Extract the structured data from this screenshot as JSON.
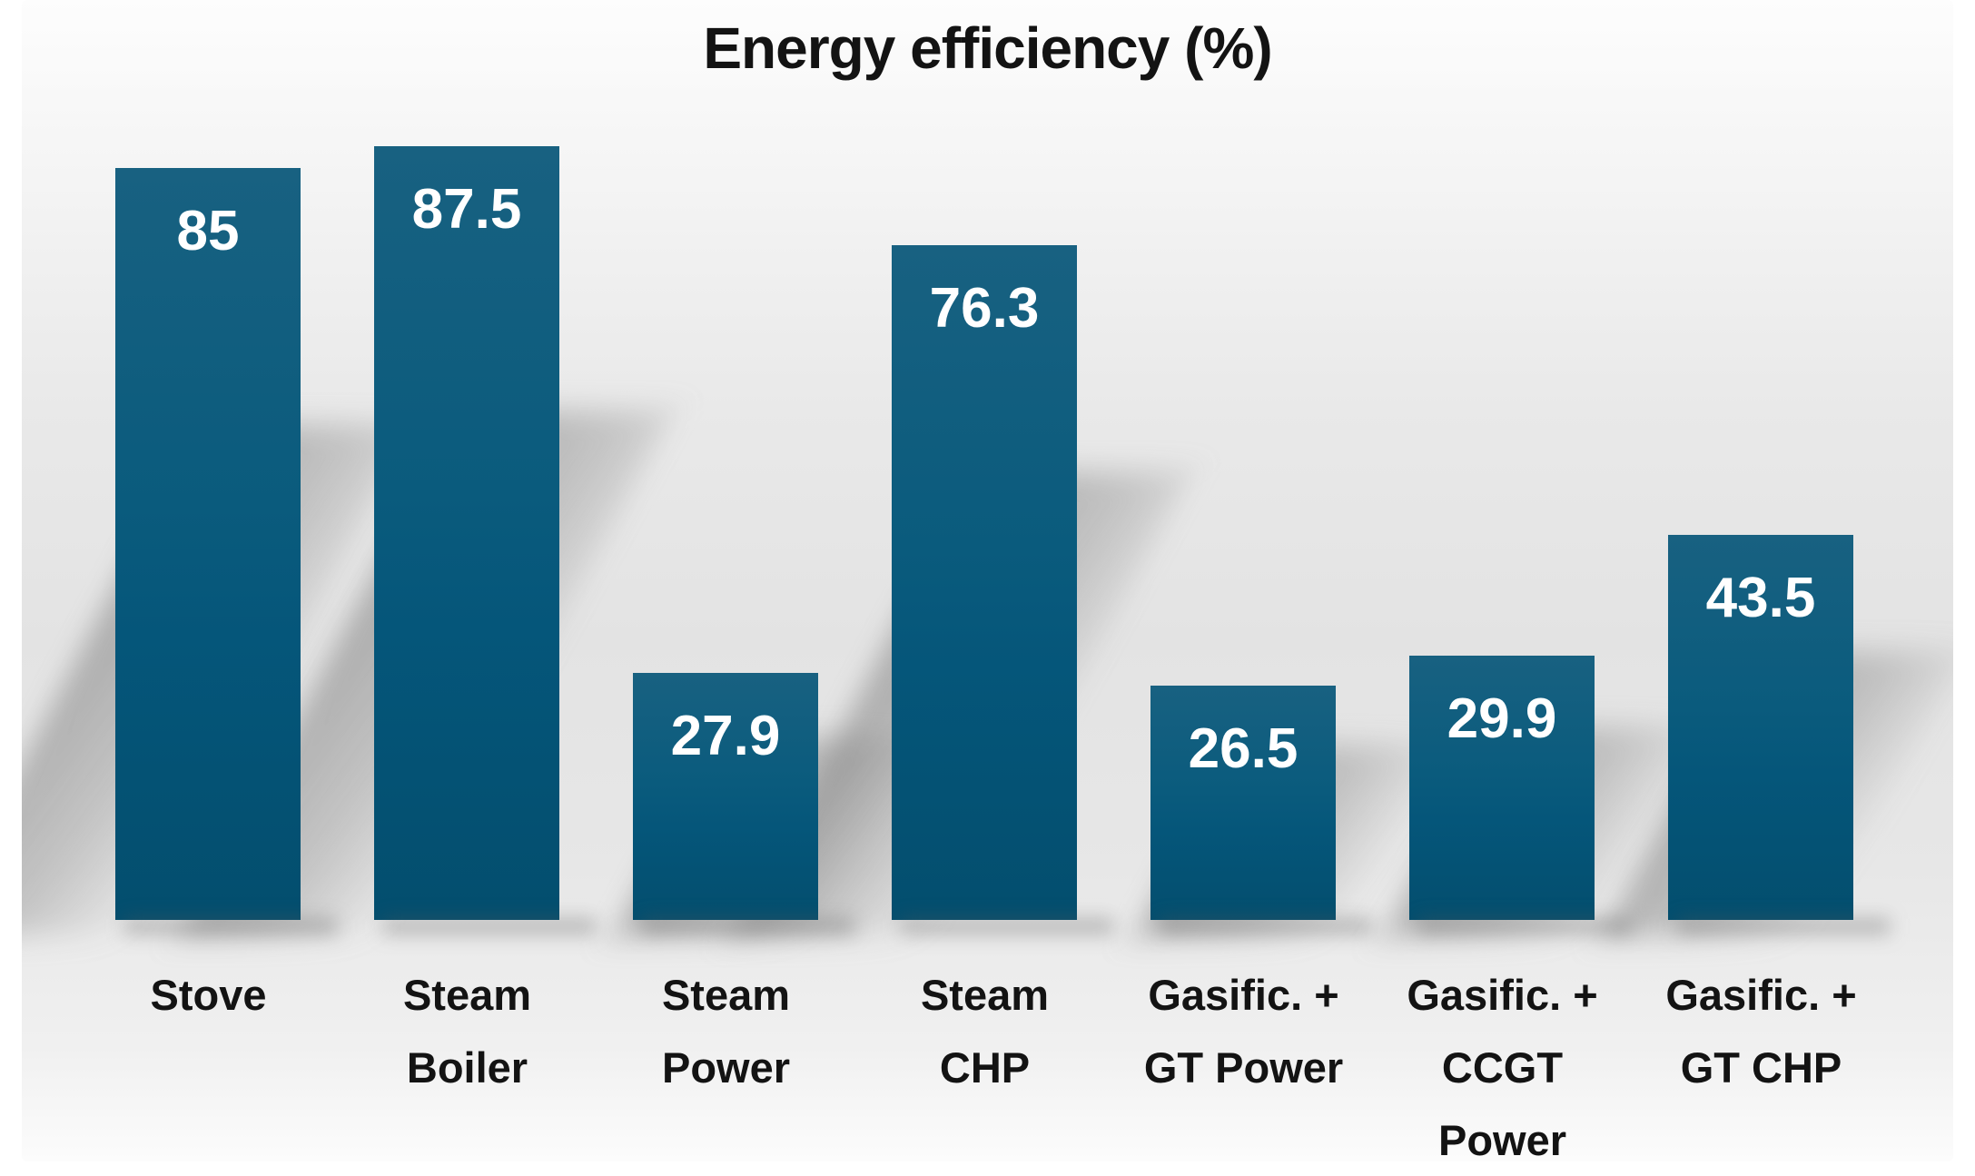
{
  "title": "Energy efficiency (%)",
  "chart_data": {
    "type": "bar",
    "title": "Energy efficiency (%)",
    "categories": [
      "Stove",
      "Steam Boiler",
      "Steam Power",
      "Steam CHP",
      "Gasific. + GT Power",
      "Gasific. + CCGT Power",
      "Gasific. + GT CHP"
    ],
    "category_lines": [
      [
        "Stove"
      ],
      [
        "Steam",
        "Boiler"
      ],
      [
        "Steam",
        "Power"
      ],
      [
        "Steam",
        "CHP"
      ],
      [
        "Gasific. +",
        "GT Power"
      ],
      [
        "Gasific. +",
        "CCGT",
        "Power"
      ],
      [
        "Gasific. +",
        "GT CHP"
      ]
    ],
    "values": [
      85,
      87.5,
      27.9,
      76.3,
      26.5,
      29.9,
      43.5
    ],
    "value_labels": [
      "85",
      "87.5",
      "27.9",
      "76.3",
      "26.5",
      "29.9",
      "43.5"
    ],
    "xlabel": "",
    "ylabel": "",
    "ylim": [
      0,
      95
    ],
    "grid": false,
    "legend": "none",
    "data_label_position": "inside-top",
    "bar_color_top": "#186181",
    "bar_color_bottom": "#034E6E",
    "value_label_color": "#FFFFFF",
    "category_label_color": "#131313",
    "title_color": "#131313",
    "background_top": "#FDFDFD",
    "background_mid": "#E3E3E3",
    "background_bottom": "#FCFCFC",
    "shadow_color": "#7D7D7D",
    "shadow_style": "perspective-diagonal-lower-right"
  }
}
